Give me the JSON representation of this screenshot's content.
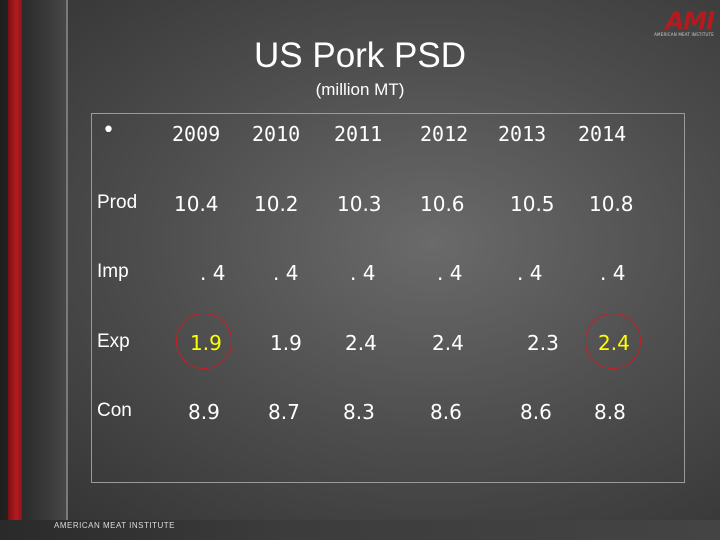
{
  "slide": {
    "title": "US Pork PSD",
    "subtitle": "(million MT)",
    "bullet": "•",
    "footer": "AMERICAN MEAT INSTITUTE",
    "logo_mark": "AMI",
    "logo_sub": "AMERICAN MEAT INSTITUTE"
  },
  "table": {
    "years": [
      "2009",
      "2010",
      "2011",
      "2012",
      "2013",
      "2014"
    ],
    "rows": [
      {
        "label": "Prod",
        "values": [
          "10.4",
          "10.2",
          "10.3",
          "10.6",
          "10.5",
          "10.8"
        ]
      },
      {
        "label": "Imp",
        "values": [
          ". 4",
          ". 4",
          ". 4",
          ". 4",
          ". 4",
          ". 4"
        ]
      },
      {
        "label": "Exp",
        "values": [
          "1.9",
          "1.9",
          "2.4",
          "2.4",
          "2.3",
          "2.4"
        ]
      },
      {
        "label": "Con",
        "values": [
          "8.9",
          "8.7",
          "8.3",
          "8.6",
          "8.6",
          "8.8"
        ]
      }
    ]
  },
  "colors": {
    "highlight_text": "#ffff00",
    "circle": "#c81e22",
    "accent_red": "#b31b1f"
  }
}
